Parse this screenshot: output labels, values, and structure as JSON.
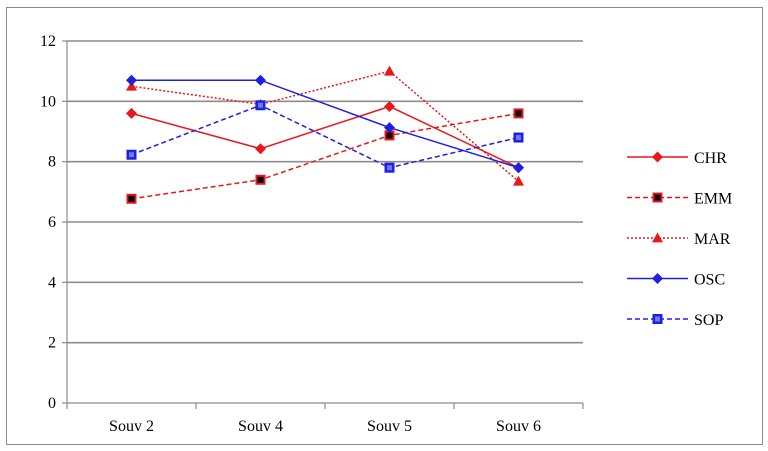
{
  "chart_data": {
    "type": "line",
    "title": "",
    "xlabel": "",
    "ylabel": "",
    "categories": [
      "Souv 2",
      "Souv 4",
      "Souv 5",
      "Souv 6"
    ],
    "ylim": [
      0,
      12
    ],
    "yticks": [
      0,
      2,
      4,
      6,
      8,
      10,
      12
    ],
    "grid": "horizontal",
    "legend_position": "right",
    "series": [
      {
        "name": "CHR",
        "values": [
          9.6,
          8.43,
          9.83,
          7.8
        ],
        "color": "#e8171c",
        "dash": "solid",
        "marker": "diamond"
      },
      {
        "name": "EMM",
        "values": [
          6.77,
          7.4,
          8.87,
          9.6
        ],
        "color": "#e8171c",
        "dash": "dashed",
        "marker": "square-black"
      },
      {
        "name": "MAR",
        "values": [
          10.5,
          9.9,
          11.0,
          7.35
        ],
        "color": "#e8171c",
        "dash": "dotted",
        "marker": "triangle"
      },
      {
        "name": "OSC",
        "values": [
          10.7,
          10.7,
          9.13,
          7.8
        ],
        "color": "#1f1fe0",
        "dash": "solid",
        "marker": "diamond"
      },
      {
        "name": "SOP",
        "values": [
          8.23,
          9.87,
          7.8,
          8.8
        ],
        "color": "#1f1fe0",
        "dash": "dashed",
        "marker": "square"
      }
    ]
  }
}
